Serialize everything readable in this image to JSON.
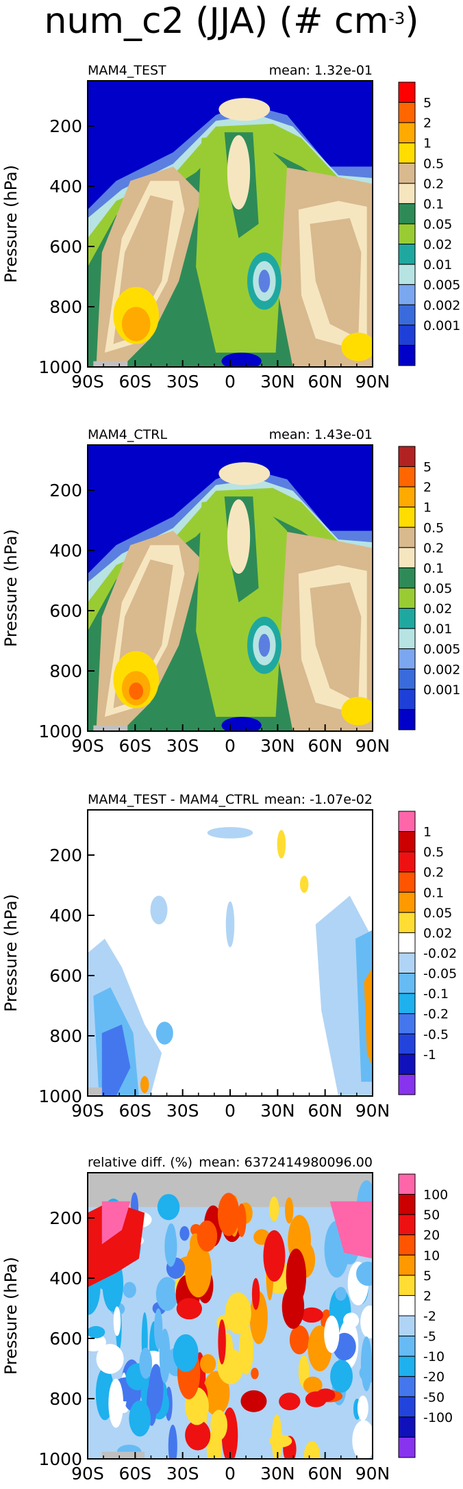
{
  "figure": {
    "title_text": "num_c2 (JJA) (# cm",
    "title_exp": "-3",
    "title_close": ")"
  },
  "colors": {
    "background": "#0000c8",
    "missing": "#c0c0c0",
    "white": "#ffffff"
  },
  "chart_data": [
    {
      "type": "heatmap",
      "id": "test",
      "left_label": "MAM4_TEST",
      "right_label": "mean: 1.32e-01",
      "ylabel": "Pressure (hPa)",
      "x_ticks": [
        "90S",
        "60S",
        "30S",
        "0",
        "30N",
        "60N",
        "90N"
      ],
      "y_ticks": [
        "200",
        "400",
        "600",
        "800",
        "1000"
      ],
      "xlim": [
        -90,
        90
      ],
      "ylim": [
        1000,
        50
      ],
      "y_reversed": true,
      "mean": 0.132,
      "colorbar_levels": [
        "5",
        "2",
        "1",
        "0.5",
        "0.2",
        "0.1",
        "0.05",
        "0.02",
        "0.01",
        "0.005",
        "0.002",
        "0.001"
      ],
      "colorbar_colors": [
        "#ff0000",
        "#ff6600",
        "#ffaa00",
        "#ffdd00",
        "#d9b98e",
        "#f5e6c0",
        "#2e8b57",
        "#99cc33",
        "#1fa8a0",
        "#b7e3e3",
        "#7ba7f0",
        "#3a6bdc",
        "#1e40d8",
        "#0000c8"
      ],
      "note_colors_top": "#b22222"
    },
    {
      "type": "heatmap",
      "id": "ctrl",
      "left_label": "MAM4_CTRL",
      "right_label": "mean: 1.43e-01",
      "ylabel": "Pressure (hPa)",
      "x_ticks": [
        "90S",
        "60S",
        "30S",
        "0",
        "30N",
        "60N",
        "90N"
      ],
      "y_ticks": [
        "200",
        "400",
        "600",
        "800",
        "1000"
      ],
      "xlim": [
        -90,
        90
      ],
      "ylim": [
        1000,
        50
      ],
      "y_reversed": true,
      "mean": 0.143,
      "colorbar_levels": [
        "5",
        "2",
        "1",
        "0.5",
        "0.2",
        "0.1",
        "0.05",
        "0.02",
        "0.01",
        "0.005",
        "0.002",
        "0.001"
      ],
      "colorbar_colors": [
        "#b22222",
        "#ff6600",
        "#ffaa00",
        "#ffdd00",
        "#d9b98e",
        "#f5e6c0",
        "#2e8b57",
        "#99cc33",
        "#1fa8a0",
        "#b7e3e3",
        "#7ba7f0",
        "#3a6bdc",
        "#1e40d8",
        "#0000c8"
      ]
    },
    {
      "type": "heatmap",
      "id": "diff",
      "left_label": "MAM4_TEST - MAM4_CTRL",
      "right_label": "mean: -1.07e-02",
      "ylabel": "Pressure (hPa)",
      "x_ticks": [
        "90S",
        "60S",
        "30S",
        "0",
        "30N",
        "60N",
        "90N"
      ],
      "y_ticks": [
        "200",
        "400",
        "600",
        "800",
        "1000"
      ],
      "xlim": [
        -90,
        90
      ],
      "ylim": [
        1000,
        50
      ],
      "y_reversed": true,
      "mean": -0.0107,
      "colorbar_levels": [
        "1",
        "0.5",
        "0.2",
        "0.1",
        "0.05",
        "0.02",
        "-0.02",
        "-0.05",
        "-0.1",
        "-0.2",
        "-0.5",
        "-1"
      ],
      "colorbar_colors": [
        "#ff66aa",
        "#cc0000",
        "#ee1111",
        "#ff5500",
        "#ff9900",
        "#ffdd33",
        "#ffffff",
        "#b0d4f5",
        "#66bbf5",
        "#1fb0ee",
        "#4477ee",
        "#2244dd",
        "#1111bb",
        "#8833ee"
      ]
    },
    {
      "type": "heatmap",
      "id": "rel",
      "left_label": "relative diff. (%)",
      "right_label": "mean: 6372414980096.00",
      "ylabel": "Pressure (hPa)",
      "x_ticks": [
        "90S",
        "60S",
        "30S",
        "0",
        "30N",
        "60N",
        "90N"
      ],
      "y_ticks": [
        "200",
        "400",
        "600",
        "800",
        "1000"
      ],
      "xlim": [
        -90,
        90
      ],
      "ylim": [
        1000,
        50
      ],
      "y_reversed": true,
      "mean": 6372414980096.0,
      "colorbar_levels": [
        "100",
        "50",
        "20",
        "10",
        "5",
        "2",
        "-2",
        "-5",
        "-10",
        "-20",
        "-50",
        "-100"
      ],
      "colorbar_colors": [
        "#ff66aa",
        "#cc0000",
        "#ee1111",
        "#ff5500",
        "#ff9900",
        "#ffdd33",
        "#ffffff",
        "#b0d4f5",
        "#66bbf5",
        "#1fb0ee",
        "#4477ee",
        "#2244dd",
        "#1111bb",
        "#8833ee"
      ]
    }
  ]
}
